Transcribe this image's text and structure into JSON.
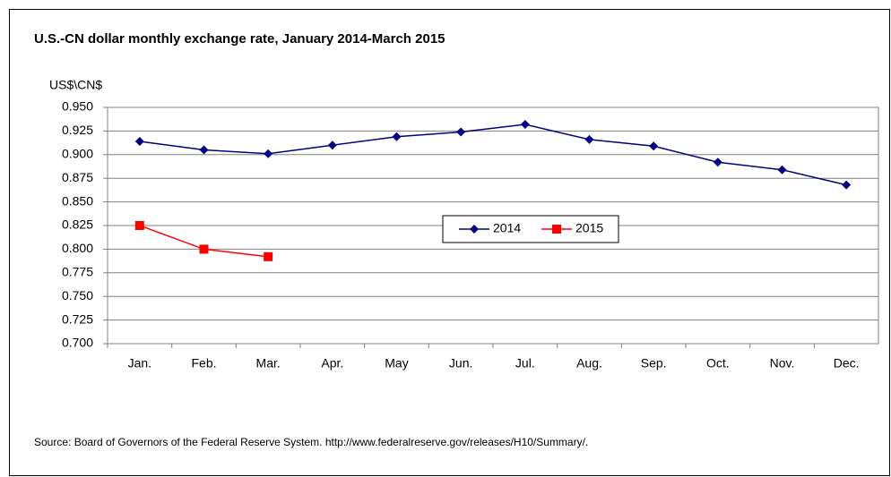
{
  "chart_data": {
    "type": "line",
    "title": "U.S.-CN dollar monthly exchange rate, January 2014-March 2015",
    "y_label": "US$\\CN$",
    "source": "Source: Board of Governors of the Federal Reserve System. http://www.federalreserve.gov/releases/H10/Summary/.",
    "categories": [
      "Jan.",
      "Feb.",
      "Mar.",
      "Apr.",
      "May",
      "Jun.",
      "Jul.",
      "Aug.",
      "Sep.",
      "Oct.",
      "Nov.",
      "Dec."
    ],
    "series": [
      {
        "name": "2014",
        "color": "#000080",
        "marker": "diamond",
        "values": [
          0.914,
          0.905,
          0.901,
          0.91,
          0.919,
          0.924,
          0.932,
          0.916,
          0.909,
          0.892,
          0.884,
          0.868
        ]
      },
      {
        "name": "2015",
        "color": "#ff0000",
        "marker": "square",
        "values": [
          0.825,
          0.8,
          0.792,
          null,
          null,
          null,
          null,
          null,
          null,
          null,
          null,
          null
        ]
      }
    ],
    "ylim": [
      0.7,
      0.95
    ],
    "yticks": [
      {
        "value": 0.7,
        "label": "0.700"
      },
      0.725,
      {
        "value": 0.75,
        "label": "0.750"
      },
      0.775,
      {
        "value": 0.8,
        "label": "0.800"
      },
      0.825,
      {
        "value": 0.85,
        "label": "0.850"
      },
      0.875,
      {
        "value": 0.9,
        "label": "0.900"
      },
      0.925,
      {
        "value": 0.95,
        "label": "0.950"
      }
    ],
    "grid": true,
    "legend": "center"
  }
}
